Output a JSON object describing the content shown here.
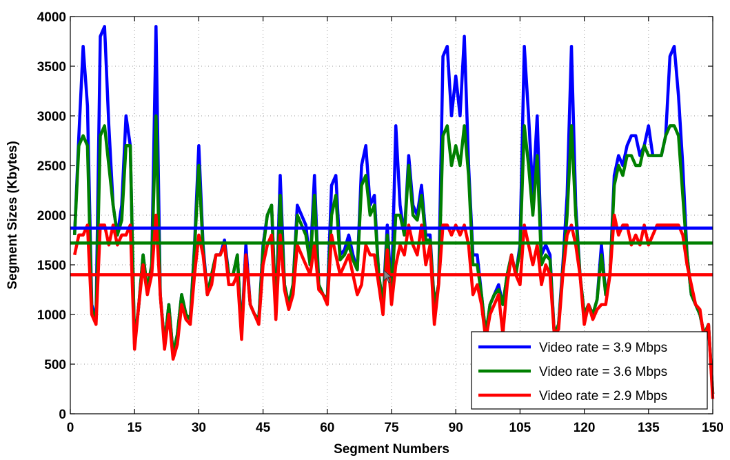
{
  "chart_data": {
    "type": "line",
    "xlabel": "Segment Numbers",
    "ylabel": "Segment Sizes (Kbytes)",
    "xlim": [
      0,
      150
    ],
    "ylim": [
      0,
      4000
    ],
    "xticks": [
      0,
      15,
      30,
      45,
      60,
      75,
      90,
      105,
      120,
      135,
      150
    ],
    "yticks": [
      0,
      500,
      1000,
      1500,
      2000,
      2500,
      3000,
      3500,
      4000
    ],
    "grid": true,
    "grid_style": "dotted",
    "legend_position": "bottom-right",
    "series": [
      {
        "name": "Video rate = 3.9 Mbps",
        "color": "#0000ff",
        "average": 1870,
        "x": [
          1,
          2,
          3,
          4,
          5,
          6,
          7,
          8,
          9,
          10,
          11,
          12,
          13,
          14,
          15,
          16,
          17,
          18,
          19,
          20,
          21,
          22,
          23,
          24,
          25,
          26,
          27,
          28,
          29,
          30,
          31,
          32,
          33,
          34,
          35,
          36,
          37,
          38,
          39,
          40,
          41,
          42,
          43,
          44,
          45,
          46,
          47,
          48,
          49,
          50,
          51,
          52,
          53,
          54,
          55,
          56,
          57,
          58,
          59,
          60,
          61,
          62,
          63,
          64,
          65,
          66,
          67,
          68,
          69,
          70,
          71,
          72,
          73,
          74,
          75,
          76,
          77,
          78,
          79,
          80,
          81,
          82,
          83,
          84,
          85,
          86,
          87,
          88,
          89,
          90,
          91,
          92,
          93,
          94,
          95,
          96,
          97,
          98,
          99,
          100,
          101,
          102,
          103,
          104,
          105,
          106,
          107,
          108,
          109,
          110,
          111,
          112,
          113,
          114,
          115,
          116,
          117,
          118,
          119,
          120,
          121,
          122,
          123,
          124,
          125,
          126,
          127,
          128,
          129,
          130,
          131,
          132,
          133,
          134,
          135,
          136,
          137,
          138,
          139,
          140,
          141,
          142,
          143,
          144,
          145,
          146,
          147,
          148,
          149,
          150
        ],
        "y": [
          1800,
          2800,
          3700,
          3100,
          1100,
          950,
          3800,
          3900,
          2900,
          2100,
          1800,
          2100,
          3000,
          2700,
          700,
          1100,
          1600,
          1250,
          1500,
          3900,
          1200,
          700,
          1100,
          600,
          800,
          1200,
          1000,
          950,
          1700,
          2700,
          1700,
          1200,
          1400,
          1600,
          1600,
          1750,
          1400,
          1400,
          1600,
          800,
          1700,
          1100,
          1000,
          950,
          1700,
          2000,
          2100,
          1000,
          2400,
          1300,
          1100,
          1300,
          2100,
          2000,
          1900,
          1500,
          2400,
          1300,
          1200,
          1150,
          2300,
          2400,
          1600,
          1650,
          1800,
          1600,
          1450,
          2500,
          2700,
          2100,
          2200,
          1400,
          1100,
          1900,
          1200,
          2900,
          2100,
          1800,
          2600,
          2100,
          2000,
          2300,
          1800,
          1800,
          1100,
          1300,
          3600,
          3700,
          3000,
          3400,
          3000,
          3800,
          2500,
          1600,
          1600,
          1200,
          800,
          1100,
          1200,
          1300,
          1100,
          1400,
          1600,
          1400,
          1700,
          3700,
          3000,
          2200,
          3000,
          1600,
          1700,
          1600,
          800,
          900,
          1500,
          2200,
          3700,
          2100,
          1400,
          1000,
          1100,
          1000,
          1150,
          1700,
          1200,
          1400,
          2400,
          2600,
          2500,
          2700,
          2800,
          2800,
          2600,
          2700,
          2900,
          2600,
          2600,
          2600,
          2800,
          3600,
          3700,
          3200,
          2500,
          1600,
          1200,
          1100,
          1000,
          800,
          900,
          200
        ]
      },
      {
        "name": "Video rate = 3.6 Mbps",
        "color": "#008000",
        "average": 1720,
        "x": [
          1,
          2,
          3,
          4,
          5,
          6,
          7,
          8,
          9,
          10,
          11,
          12,
          13,
          14,
          15,
          16,
          17,
          18,
          19,
          20,
          21,
          22,
          23,
          24,
          25,
          26,
          27,
          28,
          29,
          30,
          31,
          32,
          33,
          34,
          35,
          36,
          37,
          38,
          39,
          40,
          41,
          42,
          43,
          44,
          45,
          46,
          47,
          48,
          49,
          50,
          51,
          52,
          53,
          54,
          55,
          56,
          57,
          58,
          59,
          60,
          61,
          62,
          63,
          64,
          65,
          66,
          67,
          68,
          69,
          70,
          71,
          72,
          73,
          74,
          75,
          76,
          77,
          78,
          79,
          80,
          81,
          82,
          83,
          84,
          85,
          86,
          87,
          88,
          89,
          90,
          91,
          92,
          93,
          94,
          95,
          96,
          97,
          98,
          99,
          100,
          101,
          102,
          103,
          104,
          105,
          106,
          107,
          108,
          109,
          110,
          111,
          112,
          113,
          114,
          115,
          116,
          117,
          118,
          119,
          120,
          121,
          122,
          123,
          124,
          125,
          126,
          127,
          128,
          129,
          130,
          131,
          132,
          133,
          134,
          135,
          136,
          137,
          138,
          139,
          140,
          141,
          142,
          143,
          144,
          145,
          146,
          147,
          148,
          149,
          150
        ],
        "y": [
          1800,
          2700,
          2800,
          2700,
          1050,
          950,
          2800,
          2900,
          2500,
          2100,
          1800,
          1950,
          2700,
          2700,
          700,
          1100,
          1600,
          1250,
          1500,
          3000,
          1200,
          700,
          1100,
          600,
          800,
          1200,
          1000,
          950,
          1650,
          2500,
          1650,
          1200,
          1400,
          1600,
          1600,
          1700,
          1400,
          1400,
          1600,
          800,
          1600,
          1100,
          1000,
          950,
          1650,
          2000,
          2100,
          1000,
          2200,
          1300,
          1100,
          1300,
          2000,
          1900,
          1800,
          1500,
          2200,
          1300,
          1200,
          1150,
          2000,
          2200,
          1550,
          1600,
          1700,
          1550,
          1450,
          2300,
          2400,
          2000,
          2100,
          1400,
          1100,
          1800,
          1200,
          2000,
          2000,
          1800,
          2500,
          2000,
          1950,
          2200,
          1750,
          1750,
          1100,
          1300,
          2800,
          2900,
          2500,
          2700,
          2500,
          2900,
          2400,
          1500,
          1500,
          1200,
          800,
          1100,
          1200,
          1250,
          1100,
          1400,
          1600,
          1400,
          1650,
          2900,
          2500,
          2000,
          2600,
          1500,
          1600,
          1550,
          800,
          900,
          1450,
          2000,
          2900,
          2000,
          1400,
          1000,
          1100,
          1000,
          1150,
          1600,
          1200,
          1400,
          2300,
          2500,
          2400,
          2600,
          2600,
          2500,
          2500,
          2700,
          2600,
          2600,
          2600,
          2600,
          2800,
          2900,
          2900,
          2800,
          2200,
          1600,
          1200,
          1100,
          1000,
          800,
          900,
          200
        ]
      },
      {
        "name": "Video rate = 2.9 Mbps",
        "color": "#ff0000",
        "average": 1400,
        "x": [
          1,
          2,
          3,
          4,
          5,
          6,
          7,
          8,
          9,
          10,
          11,
          12,
          13,
          14,
          15,
          16,
          17,
          18,
          19,
          20,
          21,
          22,
          23,
          24,
          25,
          26,
          27,
          28,
          29,
          30,
          31,
          32,
          33,
          34,
          35,
          36,
          37,
          38,
          39,
          40,
          41,
          42,
          43,
          44,
          45,
          46,
          47,
          48,
          49,
          50,
          51,
          52,
          53,
          54,
          55,
          56,
          57,
          58,
          59,
          60,
          61,
          62,
          63,
          64,
          65,
          66,
          67,
          68,
          69,
          70,
          71,
          72,
          73,
          74,
          75,
          76,
          77,
          78,
          79,
          80,
          81,
          82,
          83,
          84,
          85,
          86,
          87,
          88,
          89,
          90,
          91,
          92,
          93,
          94,
          95,
          96,
          97,
          98,
          99,
          100,
          101,
          102,
          103,
          104,
          105,
          106,
          107,
          108,
          109,
          110,
          111,
          112,
          113,
          114,
          115,
          116,
          117,
          118,
          119,
          120,
          121,
          122,
          123,
          124,
          125,
          126,
          127,
          128,
          129,
          130,
          131,
          132,
          133,
          134,
          135,
          136,
          137,
          138,
          139,
          140,
          141,
          142,
          143,
          144,
          145,
          146,
          147,
          148,
          149,
          150
        ],
        "y": [
          1600,
          1800,
          1800,
          1900,
          1000,
          900,
          1900,
          1900,
          1700,
          1900,
          1700,
          1800,
          1800,
          1900,
          650,
          1100,
          1500,
          1200,
          1400,
          2000,
          1200,
          650,
          1000,
          550,
          700,
          1100,
          950,
          900,
          1400,
          1800,
          1600,
          1200,
          1300,
          1600,
          1600,
          1700,
          1300,
          1300,
          1400,
          750,
          1600,
          1100,
          1000,
          900,
          1500,
          1700,
          1800,
          950,
          1800,
          1250,
          1050,
          1200,
          1700,
          1600,
          1500,
          1400,
          1700,
          1250,
          1200,
          1100,
          1800,
          1600,
          1400,
          1500,
          1600,
          1400,
          1200,
          1300,
          1700,
          1600,
          1600,
          1300,
          1000,
          1650,
          1100,
          1500,
          1700,
          1600,
          1900,
          1700,
          1600,
          1900,
          1500,
          1700,
          900,
          1300,
          1900,
          1900,
          1800,
          1900,
          1800,
          1900,
          1700,
          1200,
          1300,
          1100,
          750,
          1000,
          1100,
          1200,
          800,
          1300,
          1600,
          1400,
          1300,
          1900,
          1700,
          1500,
          1700,
          1300,
          1500,
          1400,
          800,
          850,
          1400,
          1800,
          1900,
          1700,
          1400,
          900,
          1100,
          950,
          1050,
          1100,
          1100,
          1400,
          2000,
          1800,
          1900,
          1900,
          1700,
          1800,
          1700,
          1900,
          1700,
          1800,
          1900,
          1900,
          1900,
          1900,
          1900,
          1900,
          1800,
          1500,
          1300,
          1100,
          1050,
          750,
          900,
          150
        ]
      }
    ]
  }
}
